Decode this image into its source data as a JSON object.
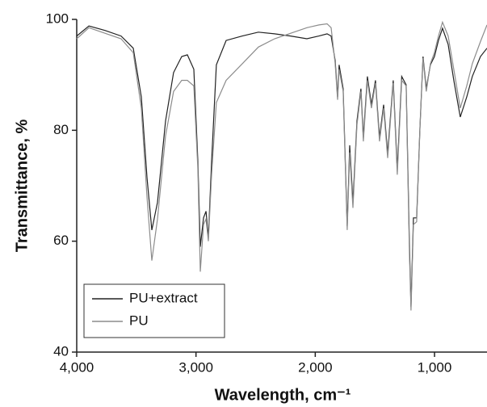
{
  "chart_data": {
    "type": "line",
    "xlabel": "Wavelength, cm⁻¹",
    "ylabel": "Transmittance, %",
    "xlim": [
      4000,
      560
    ],
    "ylim": [
      40,
      100
    ],
    "xticks": [
      {
        "value": 4000,
        "label": "4,000"
      },
      {
        "value": 3000,
        "label": "3,000"
      },
      {
        "value": 2000,
        "label": "2,000"
      },
      {
        "value": 1000,
        "label": "1,000"
      }
    ],
    "yticks": [
      40,
      60,
      80,
      100
    ],
    "legend": "lower left",
    "series": [
      {
        "name": "PU+extract",
        "color": "#222222",
        "x": [
          4000,
          3898,
          3763,
          3628,
          3526,
          3458,
          3411,
          3370,
          3323,
          3255,
          3188,
          3120,
          3072,
          3018,
          2984,
          2964,
          2937,
          2916,
          2896,
          2869,
          2829,
          2747,
          2612,
          2477,
          2341,
          2206,
          2070,
          1969,
          1901,
          1867,
          1833,
          1813,
          1800,
          1766,
          1732,
          1711,
          1684,
          1650,
          1617,
          1597,
          1563,
          1529,
          1495,
          1461,
          1427,
          1393,
          1346,
          1312,
          1275,
          1238,
          1211,
          1197,
          1177,
          1150,
          1123,
          1096,
          1069,
          1035,
          1001,
          967,
          933,
          886,
          838,
          784,
          730,
          683,
          615,
          560
        ],
        "values": [
          97,
          98.8,
          98,
          97,
          94.8,
          86,
          71.5,
          62,
          67,
          81.7,
          90.4,
          93.3,
          93.6,
          91,
          74.4,
          59,
          64.2,
          65.4,
          60.6,
          74.4,
          91.8,
          96.2,
          97,
          97.7,
          97.4,
          97,
          96.5,
          97,
          97.4,
          97,
          92.6,
          86,
          91.8,
          87.5,
          62.7,
          77.3,
          67,
          81.7,
          87.5,
          78.7,
          89.7,
          84.6,
          89,
          78.7,
          84.6,
          75.8,
          89,
          73,
          89.7,
          88.2,
          59.8,
          48.2,
          64.2,
          64.2,
          80.2,
          93.3,
          87.5,
          91.8,
          93.3,
          96.2,
          98.4,
          95.5,
          89,
          82.4,
          86,
          89.7,
          93.3,
          94.8
        ]
      },
      {
        "name": "PU",
        "color": "#8c8c8c",
        "x": [
          4000,
          3898,
          3763,
          3628,
          3526,
          3458,
          3411,
          3370,
          3323,
          3255,
          3188,
          3120,
          3072,
          3018,
          2984,
          2964,
          2937,
          2916,
          2896,
          2869,
          2829,
          2747,
          2612,
          2477,
          2341,
          2206,
          2070,
          1969,
          1901,
          1867,
          1833,
          1813,
          1800,
          1766,
          1732,
          1711,
          1684,
          1650,
          1617,
          1597,
          1563,
          1529,
          1495,
          1461,
          1427,
          1393,
          1346,
          1312,
          1275,
          1238,
          1211,
          1197,
          1177,
          1150,
          1123,
          1096,
          1069,
          1035,
          1001,
          967,
          933,
          886,
          838,
          784,
          730,
          683,
          615,
          560
        ],
        "values": [
          96.5,
          98.5,
          97.5,
          96.5,
          94,
          84,
          68,
          56.5,
          64,
          79,
          87,
          89,
          89,
          88,
          73,
          54.5,
          63,
          64,
          60,
          72,
          85,
          89,
          92,
          95,
          96.5,
          97.5,
          98.5,
          99,
          99.2,
          98.5,
          92,
          85.5,
          91,
          87,
          62,
          76,
          66,
          81,
          87,
          78,
          89,
          84,
          88.5,
          78,
          84,
          75,
          88.5,
          72,
          89,
          88,
          58,
          47.5,
          63,
          63.5,
          80,
          93,
          87,
          92,
          94,
          97,
          99.5,
          97,
          91,
          84,
          88,
          92,
          96,
          99
        ]
      }
    ]
  }
}
